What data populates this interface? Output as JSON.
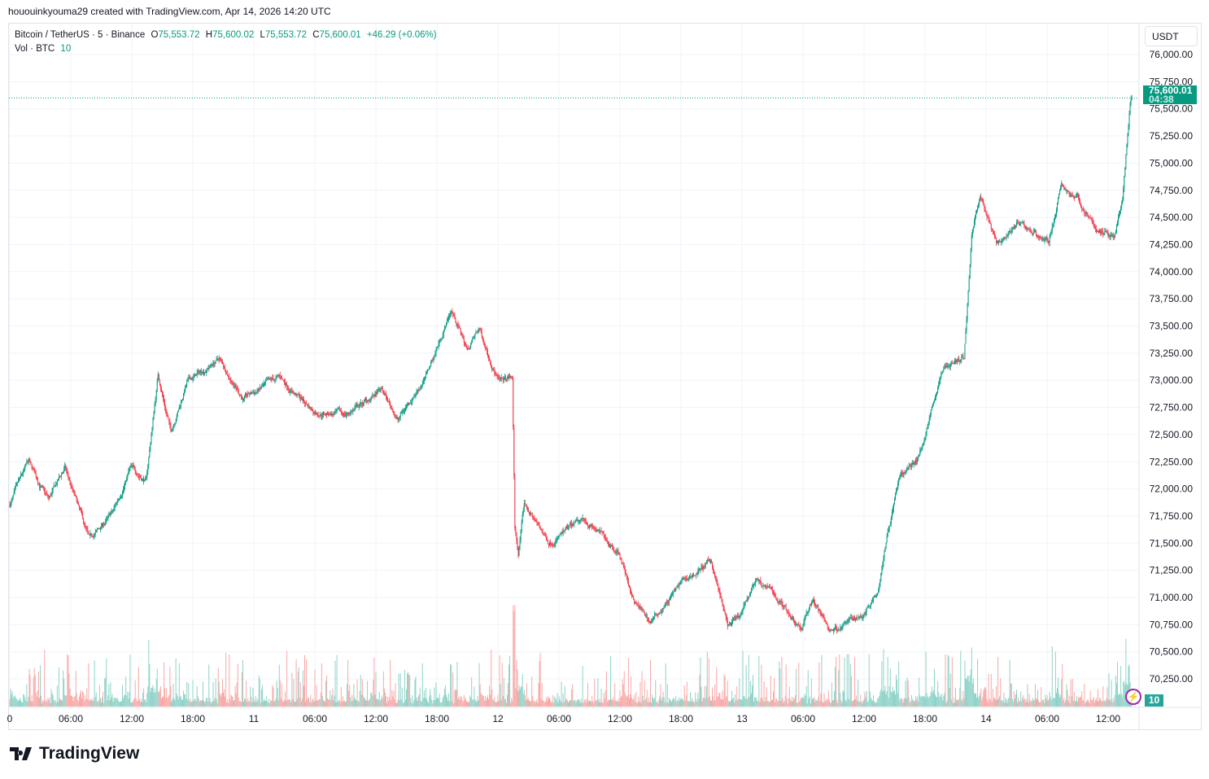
{
  "credit": "hououinkyouma29 created with TradingView.com, Apr 14, 2026 14:20 UTC",
  "legend": {
    "symbol": "Bitcoin / TetherUS · 5 · Binance",
    "o_label": "O",
    "o": "75,553.72",
    "h_label": "H",
    "h": "75,600.02",
    "l_label": "L",
    "l": "75,553.72",
    "c_label": "C",
    "c": "75,600.01",
    "change": "+46.29 (+0.06%)",
    "vol_label": "Vol · BTC",
    "vol": "10"
  },
  "currency": "USDT",
  "last_price": "75,600.01",
  "countdown": "04:38",
  "volume_tag": "10",
  "colors": {
    "up": "#089981",
    "down": "#f23645",
    "vol_up": "#8fd3c8",
    "vol_down": "#f7a9a7"
  },
  "logo": "TradingView",
  "chart_data": {
    "type": "candlestick",
    "interval": "5",
    "y_ticks": [
      "76,000.00",
      "75,750.00",
      "75,500.00",
      "75,250.00",
      "75,000.00",
      "74,750.00",
      "74,500.00",
      "74,250.00",
      "74,000.00",
      "73,750.00",
      "73,500.00",
      "73,250.00",
      "73,000.00",
      "72,750.00",
      "72,500.00",
      "72,250.00",
      "72,000.00",
      "71,750.00",
      "71,500.00",
      "71,250.00",
      "71,000.00",
      "70,750.00",
      "70,500.00",
      "70,250.00"
    ],
    "x_ticks": [
      "0",
      "06:00",
      "12:00",
      "18:00",
      "11",
      "06:00",
      "12:00",
      "18:00",
      "12",
      "06:00",
      "12:00",
      "18:00",
      "13",
      "06:00",
      "12:00",
      "18:00",
      "14",
      "06:00",
      "12:00"
    ],
    "ylim": [
      70000,
      76200
    ],
    "grid": true,
    "price_path": [
      [
        "04-10 00:00",
        71855
      ],
      [
        "04-10 01:50",
        72230
      ],
      [
        "04-10 03:50",
        71890
      ],
      [
        "04-10 05:25",
        72190
      ],
      [
        "04-10 07:50",
        71515
      ],
      [
        "04-10 10:10",
        71780
      ],
      [
        "04-10 11:50",
        72190
      ],
      [
        "04-10 13:25",
        72080
      ],
      [
        "04-10 14:35",
        73055
      ],
      [
        "04-10 15:50",
        72530
      ],
      [
        "04-10 17:25",
        72980
      ],
      [
        "04-10 20:35",
        73200
      ],
      [
        "04-10 23:00",
        72830
      ],
      [
        "04-11 02:35",
        73020
      ],
      [
        "04-11 05:50",
        72720
      ],
      [
        "04-11 09:00",
        72680
      ],
      [
        "04-11 12:35",
        72900
      ],
      [
        "04-11 14:10",
        72640
      ],
      [
        "04-11 17:00",
        73055
      ],
      [
        "04-11 19:25",
        73650
      ],
      [
        "04-11 21:00",
        73280
      ],
      [
        "04-11 22:10",
        73470
      ],
      [
        "04-12 00:10",
        72980
      ],
      [
        "04-12 01:25",
        73020
      ],
      [
        "04-12 01:40",
        71630
      ],
      [
        "04-12 02:00",
        71400
      ],
      [
        "04-12 02:35",
        71855
      ],
      [
        "04-12 05:00",
        71515
      ],
      [
        "04-12 08:35",
        71705
      ],
      [
        "04-12 11:50",
        71440
      ],
      [
        "04-12 13:25",
        70955
      ],
      [
        "04-12 15:00",
        70770
      ],
      [
        "04-12 18:10",
        71140
      ],
      [
        "04-12 21:00",
        71330
      ],
      [
        "04-12 22:35",
        70730
      ],
      [
        "04-12 23:50",
        70805
      ],
      [
        "04-13 01:25",
        71180
      ],
      [
        "04-13 03:50",
        70955
      ],
      [
        "04-13 05:50",
        70730
      ],
      [
        "04-13 07:00",
        70990
      ],
      [
        "04-13 08:35",
        70690
      ],
      [
        "04-13 11:50",
        70840
      ],
      [
        "04-13 13:25",
        71105
      ],
      [
        "04-13 14:10",
        71555
      ],
      [
        "04-13 15:25",
        72080
      ],
      [
        "04-13 17:25",
        72305
      ],
      [
        "04-13 19:50",
        73130
      ],
      [
        "04-13 21:50",
        73200
      ],
      [
        "04-13 22:35",
        74330
      ],
      [
        "04-13 23:25",
        74740
      ],
      [
        "04-14 01:00",
        74255
      ],
      [
        "04-14 03:00",
        74440
      ],
      [
        "04-14 06:10",
        74290
      ],
      [
        "04-14 07:25",
        74780
      ],
      [
        "04-14 09:00",
        74665
      ],
      [
        "04-14 11:00",
        74365
      ],
      [
        "04-14 12:35",
        74330
      ],
      [
        "04-14 13:25",
        74630
      ],
      [
        "04-14 14:10",
        75530
      ],
      [
        "04-14 14:20",
        75600.01
      ]
    ]
  }
}
